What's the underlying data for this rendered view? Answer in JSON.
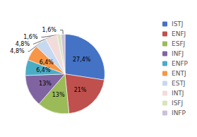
{
  "chart_data": {
    "type": "pie",
    "categories": [
      "ISTJ",
      "ENFJ",
      "ESFJ",
      "INFJ",
      "ENFP",
      "ENTJ",
      "ESTJ",
      "INTJ",
      "ISFJ",
      "INFP"
    ],
    "values": [
      27.4,
      21.0,
      13.0,
      13.0,
      6.4,
      6.4,
      4.8,
      4.8,
      1.6,
      1.6
    ],
    "value_labels": [
      "27,4%",
      "21%",
      "13%",
      "13%",
      "6,4%",
      "6,4%",
      "4,8%",
      "4,8%",
      "1,6%",
      "1,6%"
    ],
    "colors": [
      "#4472C4",
      "#C0504D",
      "#9BBB59",
      "#8064A2",
      "#4BACC6",
      "#F79646",
      "#C6D9F1",
      "#F2DCDB",
      "#D8E4BC",
      "#CCC0DA"
    ],
    "data_labels": true,
    "legend": "right"
  }
}
